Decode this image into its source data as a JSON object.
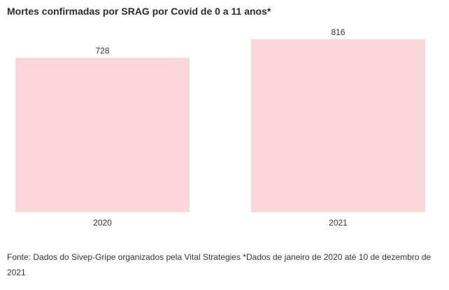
{
  "chart_data": {
    "type": "bar",
    "title": "Mortes confirmadas por SRAG por Covid de 0 a 11 anos*",
    "categories": [
      "2020",
      "2021"
    ],
    "values": [
      728,
      816
    ],
    "xlabel": "",
    "ylabel": "",
    "ylim": [
      0,
      816
    ],
    "grid": false,
    "bar_color": "#fbd7dc"
  },
  "source": "Fonte: Dados do Sivep-Gripe organizados pela Vital Strategies *Dados de janeiro de 2020 até 10 de dezembro de 2021"
}
